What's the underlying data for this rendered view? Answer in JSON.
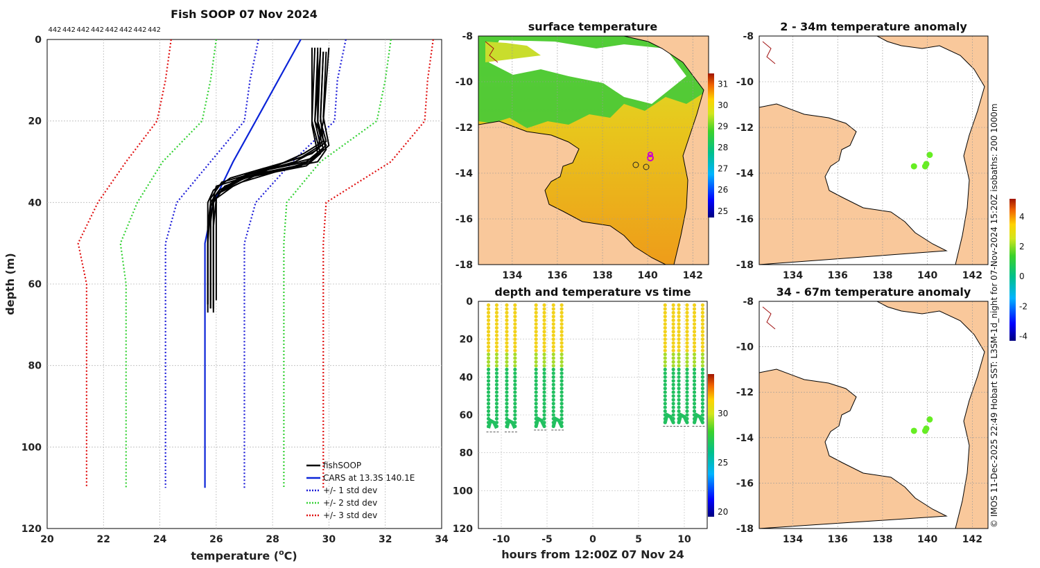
{
  "colors": {
    "land": "#f9c89b",
    "profile": "#000000",
    "cars": "#0b24d8",
    "std1": "#1a1ad8",
    "std2": "#33d133",
    "std3": "#e01010",
    "anomaly_dot": "#66ee22"
  },
  "chart_data": [
    {
      "id": "profile",
      "type": "line",
      "title": "Fish SOOP 07 Nov 2024",
      "xlabel": "temperature (",
      "xlabel_sup": "o",
      "xlabel_tail": "C)",
      "ylabel": "depth (m)",
      "xlim": [
        20,
        34
      ],
      "ylim": [
        0,
        120
      ],
      "y_reversed": true,
      "xticks": [
        "20",
        "22",
        "24",
        "26",
        "28",
        "30",
        "32",
        "34"
      ],
      "yticks": [
        "0",
        "20",
        "40",
        "60",
        "80",
        "100",
        "120"
      ],
      "count_labels": [
        "442",
        "442",
        "442",
        "442",
        "442",
        "442",
        "442",
        "442"
      ],
      "legend": [
        {
          "label": "fishSOOP",
          "color": "#000000",
          "style": "solid"
        },
        {
          "label": "CARS at 13.3S 140.1E",
          "color": "#0b24d8",
          "style": "solid"
        },
        {
          "label": "+/- 1 std dev",
          "color": "#1a1ad8",
          "style": "dotted"
        },
        {
          "label": "+/- 2 std dev",
          "color": "#33d133",
          "style": "dotted"
        },
        {
          "label": "+/- 3 std dev",
          "color": "#e01010",
          "style": "dotted"
        }
      ],
      "cars": {
        "depth": [
          0,
          20,
          30,
          40,
          50,
          60,
          110
        ],
        "temp": [
          29.0,
          27.4,
          26.6,
          25.9,
          25.6,
          25.6,
          25.6
        ]
      },
      "std_lines": [
        {
          "key": "std3_lo",
          "color": "#e01010",
          "depth": [
            0,
            10,
            20,
            30,
            40,
            50,
            60,
            110
          ],
          "temp": [
            24.4,
            24.2,
            23.9,
            22.8,
            21.8,
            21.1,
            21.4,
            21.4
          ]
        },
        {
          "key": "std2_lo",
          "color": "#33d133",
          "depth": [
            0,
            10,
            20,
            30,
            40,
            50,
            60,
            110
          ],
          "temp": [
            26.0,
            25.8,
            25.5,
            24.1,
            23.2,
            22.6,
            22.8,
            22.8
          ]
        },
        {
          "key": "std1_lo",
          "color": "#1a1ad8",
          "depth": [
            0,
            10,
            20,
            30,
            40,
            50,
            60,
            110
          ],
          "temp": [
            27.5,
            27.2,
            27.0,
            25.8,
            24.6,
            24.2,
            24.2,
            24.2
          ]
        },
        {
          "key": "std1_hi",
          "color": "#1a1ad8",
          "depth": [
            0,
            10,
            20,
            30,
            40,
            50,
            60,
            110
          ],
          "temp": [
            30.6,
            30.3,
            30.2,
            28.7,
            27.4,
            27.0,
            27.0,
            27.0
          ]
        },
        {
          "key": "std2_hi",
          "color": "#33d133",
          "depth": [
            0,
            10,
            20,
            30,
            40,
            50,
            60,
            110
          ],
          "temp": [
            32.2,
            32.0,
            31.7,
            29.7,
            28.5,
            28.4,
            28.4,
            28.4
          ]
        },
        {
          "key": "std3_hi",
          "color": "#e01010",
          "depth": [
            0,
            10,
            20,
            30,
            40,
            50,
            60,
            110
          ],
          "temp": [
            33.7,
            33.5,
            33.4,
            32.2,
            29.9,
            29.8,
            29.8,
            29.8
          ]
        }
      ],
      "fish_profiles": [
        {
          "depth": [
            2,
            20,
            27,
            30,
            33,
            36,
            39,
            45,
            55,
            66
          ],
          "temp": [
            29.6,
            29.6,
            29.9,
            29.6,
            27.4,
            26.0,
            25.9,
            25.8,
            25.8,
            25.8
          ]
        },
        {
          "depth": [
            3,
            20,
            25,
            28,
            33,
            37,
            40,
            45,
            55,
            67
          ],
          "temp": [
            29.8,
            29.7,
            29.9,
            29.4,
            27.2,
            26.2,
            25.9,
            25.9,
            25.9,
            25.9
          ]
        },
        {
          "depth": [
            2,
            20,
            28,
            31,
            34,
            38,
            40,
            50,
            60,
            65
          ],
          "temp": [
            29.5,
            29.4,
            29.7,
            29.2,
            27.0,
            26.0,
            25.8,
            25.7,
            25.7,
            25.7
          ]
        },
        {
          "depth": [
            3,
            19,
            26,
            29,
            32,
            36,
            39,
            46,
            56,
            66
          ],
          "temp": [
            29.9,
            29.8,
            30.0,
            29.5,
            27.8,
            26.3,
            26.0,
            25.9,
            25.9,
            25.9
          ]
        },
        {
          "depth": [
            2,
            21,
            27,
            30,
            35,
            38,
            41,
            48,
            58,
            64
          ],
          "temp": [
            29.7,
            29.6,
            29.8,
            29.3,
            26.9,
            26.0,
            25.8,
            25.8,
            25.8,
            25.8
          ]
        },
        {
          "depth": [
            3,
            20,
            26,
            29,
            34,
            37,
            40,
            47,
            57,
            67
          ],
          "temp": [
            29.6,
            29.5,
            29.7,
            29.0,
            26.5,
            25.9,
            25.7,
            25.7,
            25.7,
            25.7
          ]
        },
        {
          "depth": [
            2,
            20,
            27,
            30,
            35,
            39,
            42,
            48,
            58,
            66
          ],
          "temp": [
            30.0,
            29.8,
            29.6,
            28.8,
            26.2,
            25.8,
            25.8,
            25.8,
            25.8,
            25.8
          ]
        },
        {
          "depth": [
            3,
            19,
            25,
            28,
            33,
            36,
            39,
            45,
            55,
            64
          ],
          "temp": [
            29.8,
            29.7,
            29.8,
            29.1,
            27.5,
            26.6,
            26.0,
            26.0,
            26.0,
            26.0
          ]
        },
        {
          "depth": [
            2,
            21,
            28,
            31,
            34,
            38,
            40,
            49,
            59,
            66
          ],
          "temp": [
            29.4,
            29.4,
            29.6,
            29.0,
            26.8,
            26.0,
            25.9,
            25.9,
            25.9,
            25.9
          ]
        },
        {
          "depth": [
            3,
            20,
            26,
            30,
            33,
            37,
            40,
            46,
            56,
            65
          ],
          "temp": [
            29.7,
            29.5,
            29.9,
            29.2,
            27.1,
            26.1,
            25.8,
            25.7,
            25.7,
            25.7
          ]
        }
      ]
    },
    {
      "id": "sst",
      "type": "heatmap",
      "title": "surface temperature",
      "xlim": [
        132.5,
        142.7
      ],
      "ylim": [
        -18,
        -8
      ],
      "xticks": [
        "134",
        "136",
        "138",
        "140",
        "142"
      ],
      "yticks": [
        "-8",
        "-10",
        "-12",
        "-14",
        "-16",
        "-18"
      ],
      "colorbar": {
        "min": 24.7,
        "max": 31.5,
        "ticks": [
          "31",
          "30",
          "29",
          "28",
          "27",
          "26",
          "25"
        ]
      }
    },
    {
      "id": "depth_time",
      "type": "scatter",
      "title": "depth and temperature vs time",
      "xlabel": "hours from 12:00Z 07 Nov 24",
      "xlim": [
        -12.5,
        12.5
      ],
      "ylim": [
        0,
        120
      ],
      "y_reversed": true,
      "xticks": [
        "-10",
        "-5",
        "0",
        "5",
        "10"
      ],
      "yticks": [
        "0",
        "20",
        "40",
        "60",
        "80",
        "100",
        "120"
      ],
      "colorbar": {
        "min": 19.5,
        "max": 34,
        "ticks": [
          "30",
          "25",
          "20"
        ]
      },
      "casts": [
        {
          "start": -11.4,
          "dive_min": 67
        },
        {
          "start": -9.4,
          "dive_min": 67
        },
        {
          "start": -6.2,
          "dive_min": 66
        },
        {
          "start": -4.3,
          "dive_min": 66
        },
        {
          "start": 7.9,
          "dive_min": 64
        },
        {
          "start": 9.4,
          "dive_min": 64
        },
        {
          "start": 11.1,
          "dive_min": 64
        }
      ]
    },
    {
      "id": "anom_shallow",
      "type": "scatter",
      "title": "2 - 34m temperature anomaly",
      "xlim": [
        132.5,
        142.7
      ],
      "ylim": [
        -18,
        -8
      ],
      "xticks": [
        "134",
        "136",
        "138",
        "140",
        "142"
      ],
      "yticks": [
        "-8",
        "-10",
        "-12",
        "-14",
        "-16",
        "-18"
      ],
      "points": [
        {
          "lon": 139.4,
          "lat": -13.7
        },
        {
          "lon": 139.9,
          "lat": -13.7
        },
        {
          "lon": 139.95,
          "lat": -13.6
        },
        {
          "lon": 140.1,
          "lat": -13.2
        }
      ]
    },
    {
      "id": "anom_deep",
      "type": "scatter",
      "title": "34 - 67m temperature anomaly",
      "xlim": [
        132.5,
        142.7
      ],
      "ylim": [
        -18,
        -8
      ],
      "xticks": [
        "134",
        "136",
        "138",
        "140",
        "142"
      ],
      "yticks": [
        "-8",
        "-10",
        "-12",
        "-14",
        "-16",
        "-18"
      ],
      "points": [
        {
          "lon": 139.4,
          "lat": -13.7
        },
        {
          "lon": 139.9,
          "lat": -13.7
        },
        {
          "lon": 139.95,
          "lat": -13.6
        },
        {
          "lon": 140.1,
          "lat": -13.2
        }
      ],
      "colorbar": {
        "min": -4.3,
        "max": 5.2,
        "ticks": [
          "4",
          "2",
          "0",
          "-2",
          "-4"
        ]
      }
    }
  ],
  "credit": "© IMOS 11-Dec-2025 22:49 Hobart SST: L3SM-1d_night for 07-Nov-2024 15:20Z isobaths: 200  1000m"
}
